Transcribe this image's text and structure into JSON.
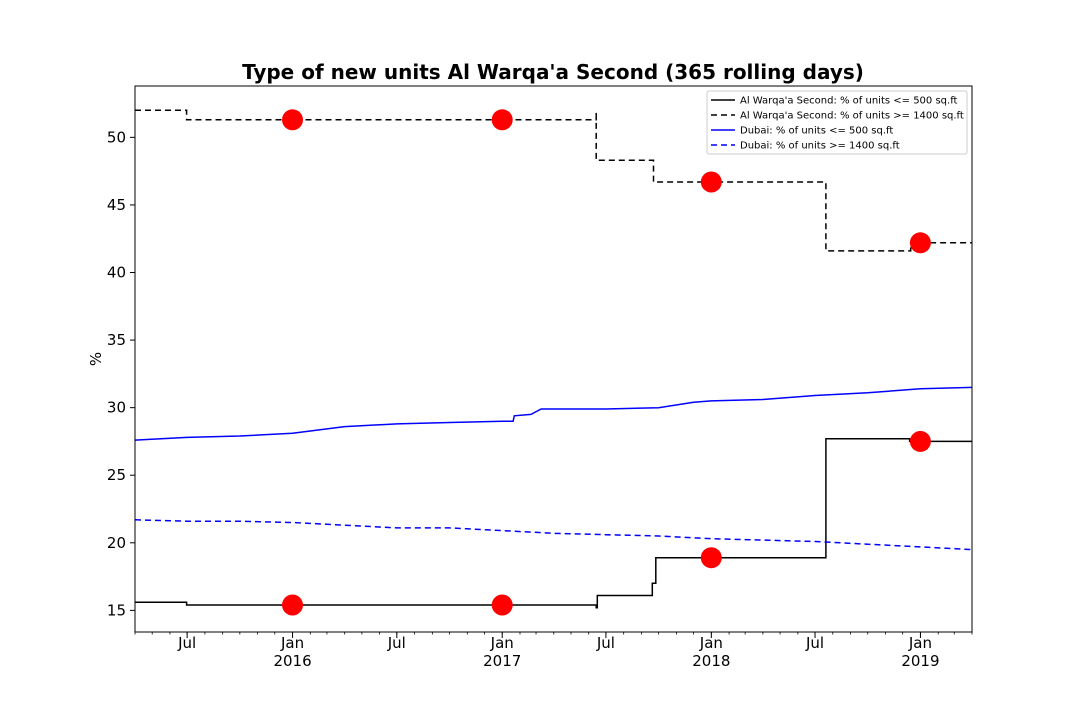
{
  "chart_data": {
    "type": "line",
    "title": "Type of new units Al Warqa'a Second (365 rolling days)",
    "xlabel": "",
    "ylabel": "%",
    "x_range": [
      "2015-04-01",
      "2019-04-01"
    ],
    "ylim": [
      13.4,
      53.8
    ],
    "yticks": [
      15,
      20,
      25,
      30,
      35,
      40,
      45,
      50
    ],
    "xticks": [
      {
        "date": "2015-07-01",
        "label": "Jul",
        "year": ""
      },
      {
        "date": "2016-01-01",
        "label": "Jan",
        "year": "2016"
      },
      {
        "date": "2016-07-01",
        "label": "Jul",
        "year": ""
      },
      {
        "date": "2017-01-01",
        "label": "Jan",
        "year": "2017"
      },
      {
        "date": "2017-07-01",
        "label": "Jul",
        "year": ""
      },
      {
        "date": "2018-01-01",
        "label": "Jan",
        "year": "2018"
      },
      {
        "date": "2018-07-01",
        "label": "Jul",
        "year": ""
      },
      {
        "date": "2019-01-01",
        "label": "Jan",
        "year": "2019"
      }
    ],
    "grid": false,
    "legend_position": "top-right",
    "series": [
      {
        "name": "Al Warqa'a Second: % of units <= 500 sq.ft",
        "color": "#000000",
        "style": "solid",
        "step": true,
        "points": [
          [
            "2015-04-01",
            15.6
          ],
          [
            "2015-06-30",
            15.4
          ],
          [
            "2017-06-14",
            15.4
          ],
          [
            "2017-06-14",
            15.2
          ],
          [
            "2017-06-16",
            16.1
          ],
          [
            "2017-09-14",
            16.1
          ],
          [
            "2017-09-20",
            17.0
          ],
          [
            "2017-09-26",
            18.9
          ],
          [
            "2018-07-20",
            18.9
          ],
          [
            "2018-07-20",
            27.7
          ],
          [
            "2018-12-10",
            27.7
          ],
          [
            "2018-12-13",
            27.5
          ],
          [
            "2019-04-01",
            27.5
          ]
        ]
      },
      {
        "name": "Al Warqa'a Second: % of units >= 1400 sq.ft",
        "color": "#000000",
        "style": "dashed",
        "step": true,
        "points": [
          [
            "2015-04-01",
            52.0
          ],
          [
            "2015-06-28",
            52.0
          ],
          [
            "2015-06-30",
            51.3
          ],
          [
            "2017-06-12",
            51.3
          ],
          [
            "2017-06-14",
            51.9
          ],
          [
            "2017-06-14",
            48.3
          ],
          [
            "2017-09-13",
            48.3
          ],
          [
            "2017-09-22",
            46.7
          ],
          [
            "2018-07-18",
            46.7
          ],
          [
            "2018-07-20",
            41.6
          ],
          [
            "2018-12-10",
            41.6
          ],
          [
            "2018-12-15",
            42.2
          ],
          [
            "2019-04-01",
            42.2
          ]
        ]
      },
      {
        "name": "Dubai: % of units <= 500 sq.ft",
        "color": "#0000ff",
        "style": "solid",
        "step": false,
        "points": [
          [
            "2015-04-01",
            27.6
          ],
          [
            "2015-07-01",
            27.8
          ],
          [
            "2015-10-01",
            27.9
          ],
          [
            "2016-01-01",
            28.1
          ],
          [
            "2016-04-01",
            28.6
          ],
          [
            "2016-07-01",
            28.8
          ],
          [
            "2016-10-01",
            28.9
          ],
          [
            "2017-01-01",
            29.0
          ],
          [
            "2017-01-20",
            29.0
          ],
          [
            "2017-01-22",
            29.4
          ],
          [
            "2017-02-20",
            29.5
          ],
          [
            "2017-03-10",
            29.9
          ],
          [
            "2017-07-01",
            29.9
          ],
          [
            "2017-10-01",
            30.0
          ],
          [
            "2017-12-01",
            30.4
          ],
          [
            "2018-01-01",
            30.5
          ],
          [
            "2018-04-01",
            30.6
          ],
          [
            "2018-07-01",
            30.9
          ],
          [
            "2018-10-01",
            31.1
          ],
          [
            "2019-01-01",
            31.4
          ],
          [
            "2019-04-01",
            31.5
          ]
        ]
      },
      {
        "name": "Dubai: % of units >= 1400 sq.ft",
        "color": "#0000ff",
        "style": "dashed",
        "step": false,
        "points": [
          [
            "2015-04-01",
            21.7
          ],
          [
            "2015-07-01",
            21.6
          ],
          [
            "2015-10-01",
            21.6
          ],
          [
            "2016-01-01",
            21.5
          ],
          [
            "2016-04-01",
            21.3
          ],
          [
            "2016-07-01",
            21.1
          ],
          [
            "2016-10-01",
            21.1
          ],
          [
            "2017-01-01",
            20.9
          ],
          [
            "2017-04-01",
            20.7
          ],
          [
            "2017-07-01",
            20.6
          ],
          [
            "2017-10-01",
            20.5
          ],
          [
            "2018-01-01",
            20.3
          ],
          [
            "2018-04-01",
            20.2
          ],
          [
            "2018-07-01",
            20.1
          ],
          [
            "2018-10-01",
            19.9
          ],
          [
            "2019-01-01",
            19.7
          ],
          [
            "2019-04-01",
            19.5
          ]
        ]
      }
    ],
    "markers": {
      "color": "#ff0000",
      "points": [
        [
          "2016-01-01",
          15.4
        ],
        [
          "2017-01-01",
          15.4
        ],
        [
          "2018-01-01",
          18.9
        ],
        [
          "2019-01-01",
          27.5
        ],
        [
          "2016-01-01",
          51.3
        ],
        [
          "2017-01-01",
          51.3
        ],
        [
          "2018-01-01",
          46.7
        ],
        [
          "2019-01-01",
          42.2
        ]
      ]
    }
  }
}
